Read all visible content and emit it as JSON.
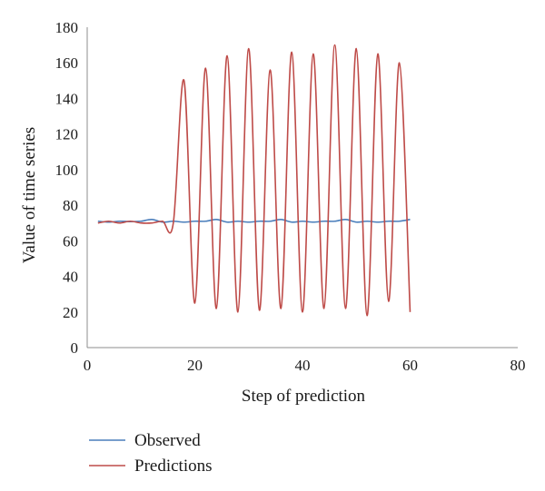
{
  "chart_data": {
    "type": "line",
    "xlabel": "Step of prediction",
    "ylabel": "Value of time series",
    "xlim": [
      0,
      80
    ],
    "ylim": [
      0,
      180
    ],
    "xticks": [
      0,
      20,
      40,
      60,
      80
    ],
    "yticks": [
      0,
      20,
      40,
      60,
      80,
      100,
      120,
      140,
      160,
      180
    ],
    "grid": false,
    "legend_position": "bottom-left",
    "series": [
      {
        "name": "Observed",
        "color": "#4a7ebb",
        "x": [
          2,
          4,
          6,
          8,
          10,
          12,
          14,
          16,
          18,
          20,
          22,
          24,
          26,
          28,
          30,
          32,
          34,
          36,
          38,
          40,
          42,
          44,
          46,
          48,
          50,
          52,
          54,
          56,
          58,
          60
        ],
        "y": [
          71,
          70.5,
          71,
          70.8,
          71,
          72,
          70.5,
          71,
          70.5,
          71,
          71,
          72,
          70.5,
          71,
          70.5,
          71,
          71,
          72,
          70.5,
          71,
          70.5,
          71,
          71,
          72,
          70.5,
          71,
          70.5,
          71,
          71,
          72
        ]
      },
      {
        "name": "Predictions",
        "color": "#be4b48",
        "x": [
          2,
          4,
          6,
          8,
          10,
          12,
          14,
          16,
          18,
          20,
          22,
          24,
          26,
          28,
          30,
          32,
          34,
          36,
          38,
          40,
          42,
          44,
          46,
          48,
          50,
          52,
          54,
          56,
          58,
          60
        ],
        "y": [
          70,
          71,
          70,
          71,
          70,
          70,
          71,
          70,
          150,
          25,
          157,
          22,
          164,
          20,
          168,
          21,
          156,
          22,
          166,
          20,
          165,
          22,
          170,
          22,
          168,
          18,
          165,
          26,
          160,
          20
        ]
      }
    ]
  }
}
